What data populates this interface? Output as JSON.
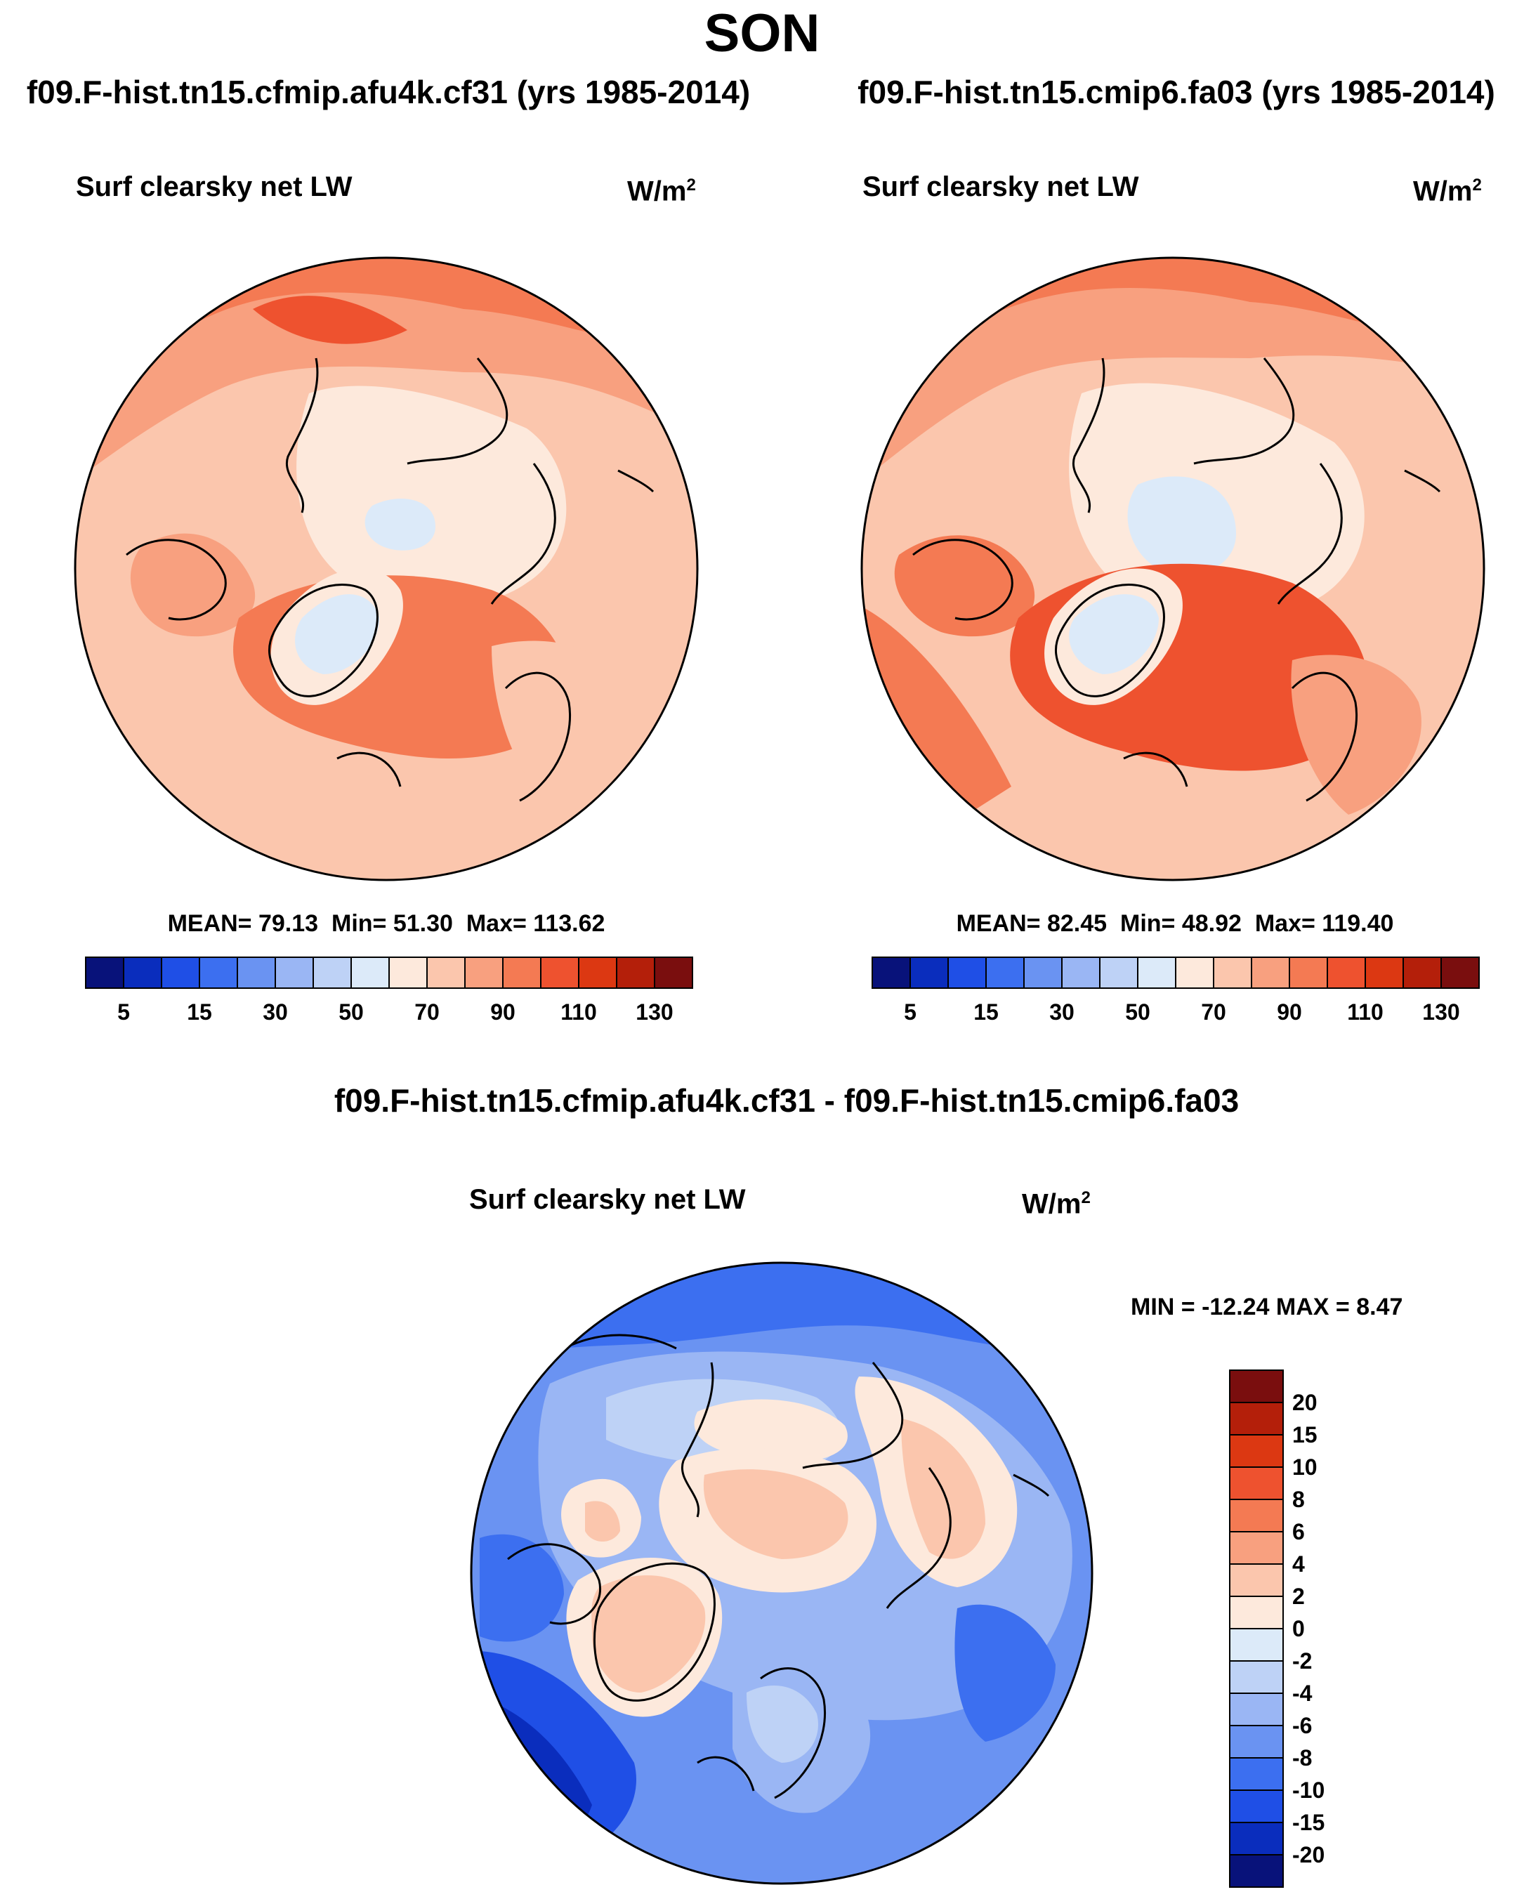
{
  "season": "SON",
  "panels": [
    {
      "run_title": "f09.F-hist.tn15.cfmip.afu4k.cf31 (yrs 1985-2014)",
      "variable": "Surf clearsky net LW",
      "units": "W/m",
      "units_sup": "2",
      "stats": {
        "mean_label": "MEAN=",
        "mean": "79.13",
        "min_label": "Min=",
        "min": "51.30",
        "max_label": "Max=",
        "max": "113.62"
      }
    },
    {
      "run_title": "f09.F-hist.tn15.cmip6.fa03 (yrs 1985-2014)",
      "variable": "Surf clearsky net LW",
      "units": "W/m",
      "units_sup": "2",
      "stats": {
        "mean_label": "MEAN=",
        "mean": "82.45",
        "min_label": "Min=",
        "min": "48.92",
        "max_label": "Max=",
        "max": "119.40"
      }
    }
  ],
  "diff_panel": {
    "title": "f09.F-hist.tn15.cfmip.afu4k.cf31 - f09.F-hist.tn15.cmip6.fa03",
    "variable": "Surf clearsky net LW",
    "units": "W/m",
    "units_sup": "2",
    "stats_text": "MIN = -12.24 MAX =   8.47"
  },
  "colorbar_top": {
    "tick_labels": [
      "5",
      "15",
      "30",
      "50",
      "70",
      "90",
      "110",
      "130"
    ],
    "colors": [
      "#08127a",
      "#0a2dbd",
      "#1f4fe6",
      "#3c6ff0",
      "#6a93f2",
      "#9ab6f4",
      "#bed2f6",
      "#dceaf9",
      "#fde9dc",
      "#fbc6ad",
      "#f8a07f",
      "#f47a53",
      "#ee522f",
      "#dc3812",
      "#b41f0a",
      "#7a0e0e"
    ]
  },
  "colorbar_diff": {
    "tick_labels": [
      "20",
      "15",
      "10",
      "8",
      "6",
      "4",
      "2",
      "0",
      "-2",
      "-4",
      "-6",
      "-8",
      "-10",
      "-15",
      "-20"
    ],
    "colors": [
      "#7a0e0e",
      "#b41f0a",
      "#dc3812",
      "#ee522f",
      "#f47a53",
      "#f8a07f",
      "#fbc6ad",
      "#fde9dc",
      "#dceaf9",
      "#bed2f6",
      "#9ab6f4",
      "#6a93f2",
      "#3c6ff0",
      "#1f4fe6",
      "#0a2dbd",
      "#08127a"
    ]
  },
  "chart_data": [
    {
      "type": "heatmap",
      "title": "Surf clearsky net LW",
      "subtitle": "f09.F-hist.tn15.cfmip.afu4k.cf31 (yrs 1985-2014)",
      "units": "W/m2",
      "levels": [
        5,
        15,
        30,
        50,
        70,
        90,
        110,
        130
      ],
      "mean": 79.13,
      "min": 51.3,
      "max": 113.62
    },
    {
      "type": "heatmap",
      "title": "Surf clearsky net LW",
      "subtitle": "f09.F-hist.tn15.cmip6.fa03 (yrs 1985-2014)",
      "units": "W/m2",
      "levels": [
        5,
        15,
        30,
        50,
        70,
        90,
        110,
        130
      ],
      "mean": 82.45,
      "min": 48.92,
      "max": 119.4
    },
    {
      "type": "heatmap",
      "title": "Surf clearsky net LW",
      "subtitle": "f09.F-hist.tn15.cfmip.afu4k.cf31 - f09.F-hist.tn15.cmip6.fa03",
      "units": "W/m2",
      "levels": [
        -20,
        -15,
        -10,
        -8,
        -6,
        -4,
        -2,
        0,
        2,
        4,
        6,
        8,
        10,
        15,
        20
      ],
      "min": -12.24,
      "max": 8.47
    }
  ]
}
